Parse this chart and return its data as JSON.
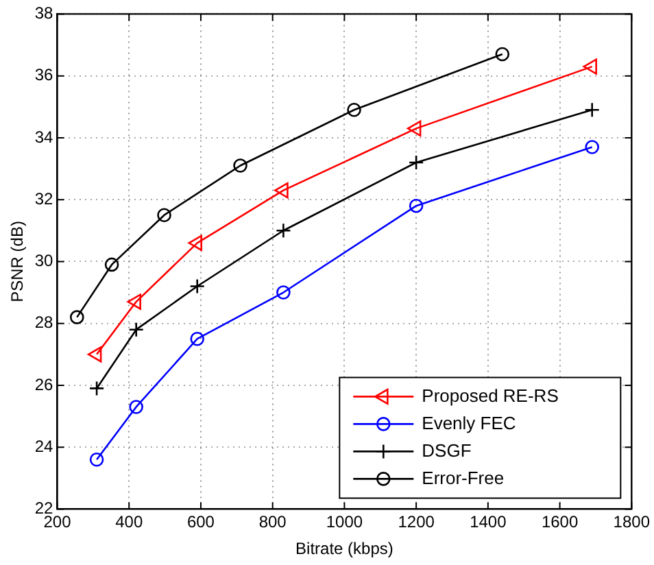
{
  "chart_data": {
    "type": "line",
    "xlabel": "Bitrate (kbps)",
    "ylabel": "PSNR (dB)",
    "xlim": [
      200,
      1800
    ],
    "xticks": [
      200,
      400,
      600,
      800,
      1000,
      1200,
      1400,
      1600,
      1800
    ],
    "ylim": [
      22,
      38
    ],
    "yticks": [
      22,
      24,
      26,
      28,
      30,
      32,
      34,
      36,
      38
    ],
    "grid": true,
    "legend": "bottom right",
    "line_style": "solid",
    "series": [
      {
        "name": "Proposed RE-RS",
        "color": "#ff0000",
        "marker": "triangle",
        "x": [
          310,
          420,
          590,
          830,
          1200,
          1690
        ],
        "values": [
          27.0,
          28.7,
          30.6,
          32.3,
          34.3,
          36.3
        ]
      },
      {
        "name": "Evenly FEC",
        "color": "#0000ff",
        "marker": "circle",
        "x": [
          310,
          420,
          590,
          830,
          1200,
          1690
        ],
        "values": [
          23.6,
          25.3,
          27.5,
          29.0,
          31.8,
          33.7
        ]
      },
      {
        "name": "DSGF",
        "color": "#000000",
        "marker": "cross",
        "x": [
          310,
          420,
          590,
          830,
          1200,
          1690
        ],
        "values": [
          25.9,
          27.8,
          29.2,
          31.0,
          33.2,
          34.9
        ]
      },
      {
        "name": "Error-Free",
        "color": "#000000",
        "marker": "circle",
        "x": [
          255,
          352,
          498,
          710,
          1027,
          1440
        ],
        "values": [
          28.2,
          29.9,
          31.5,
          33.1,
          34.9,
          36.7
        ]
      }
    ]
  }
}
